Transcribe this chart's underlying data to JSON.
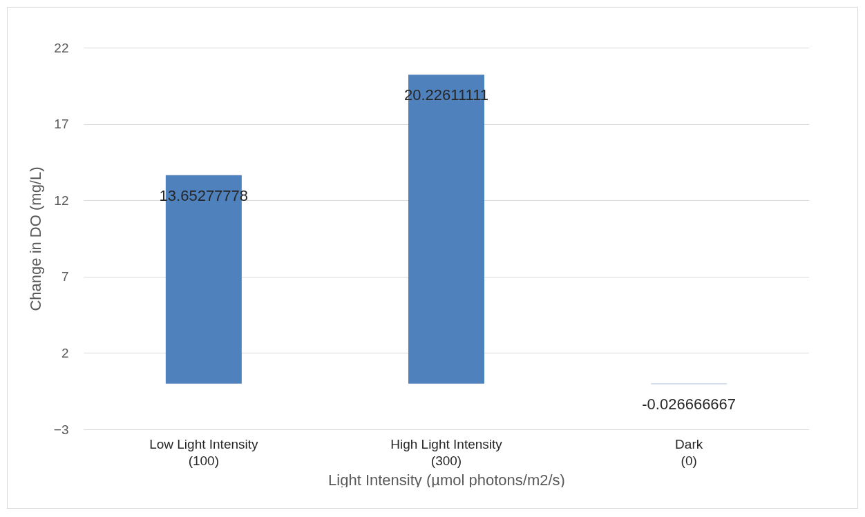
{
  "chart_data": {
    "type": "bar",
    "categories": [
      "Low Light Intensity\n(100)",
      "High Light Intensity\n(300)",
      "Dark\n(0)"
    ],
    "values": [
      13.65277778,
      20.22611111,
      -0.026666667
    ],
    "color": "#4f81bd",
    "xlabel": "Light Intensity (µmol photons/m2/s)",
    "ylabel": "Change in DO (mg/L)",
    "ylim": [
      -3,
      22
    ],
    "yticks": [
      -3,
      2,
      7,
      12,
      17,
      22
    ],
    "grid": "y",
    "data_labels": true
  }
}
